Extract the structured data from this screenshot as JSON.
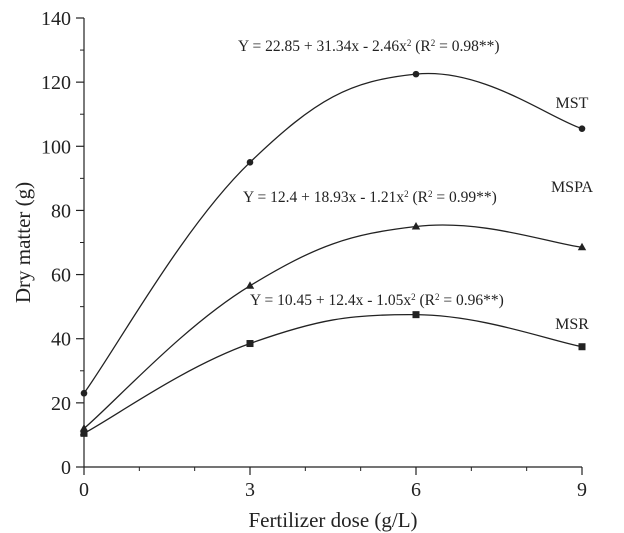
{
  "chart_data": {
    "type": "scatter",
    "xlabel": "Fertilizer dose (g/L)",
    "ylabel": "Dry matter (g)",
    "xlim": [
      0,
      9
    ],
    "ylim": [
      0,
      140
    ],
    "x_ticks": [
      0,
      3,
      6,
      9
    ],
    "y_ticks": [
      0,
      20,
      40,
      60,
      80,
      100,
      120,
      140
    ],
    "grid": false,
    "series": [
      {
        "name": "MST",
        "marker": "circle",
        "x": [
          0,
          3,
          6,
          9
        ],
        "y": [
          23,
          95,
          122.5,
          105.5
        ],
        "fit": {
          "a": 22.85,
          "b": 31.34,
          "c": -2.46
        },
        "equation": "Y = 22.85 + 31.34x - 2.46x",
        "r2_text": "(R",
        "r2_value": " = 0.98**)"
      },
      {
        "name": "MSPA",
        "marker": "triangle",
        "x": [
          0,
          3,
          6,
          9
        ],
        "y": [
          12,
          56.5,
          75,
          68.5
        ],
        "fit": {
          "a": 12.4,
          "b": 18.93,
          "c": -1.21
        },
        "equation": "Y = 12.4 + 18.93x - 1.21x",
        "r2_text": "(R",
        "r2_value": " = 0.99**)"
      },
      {
        "name": "MSR",
        "marker": "square",
        "x": [
          0,
          3,
          6,
          9
        ],
        "y": [
          10.5,
          38.5,
          47.5,
          37.5
        ],
        "fit": {
          "a": 10.45,
          "b": 12.4,
          "c": -1.05
        },
        "equation": "Y = 10.45 + 12.4x - 1.05x",
        "r2_text": "(R",
        "r2_value": " = 0.96**)"
      }
    ],
    "superscript": "2"
  }
}
